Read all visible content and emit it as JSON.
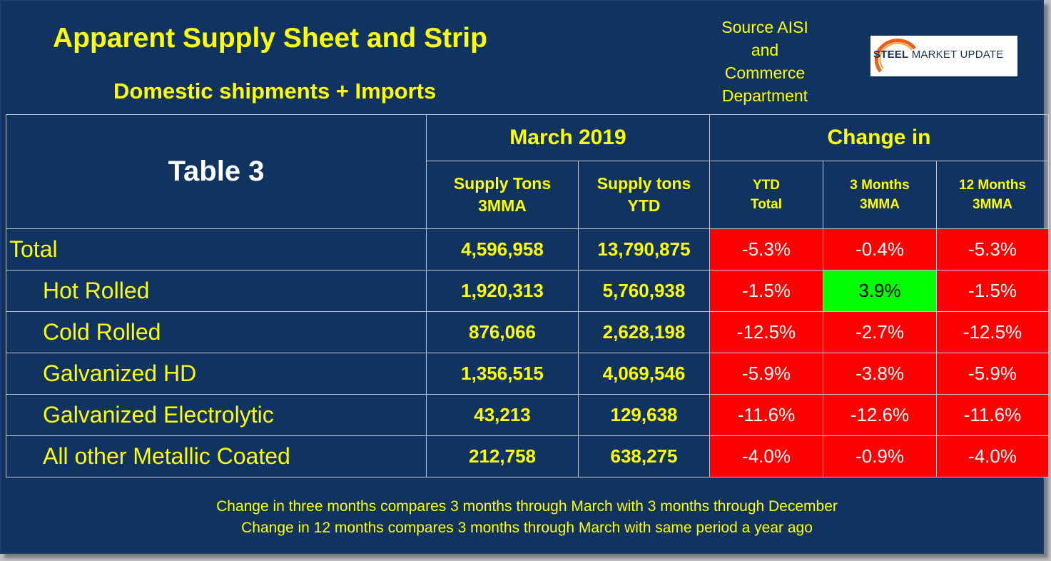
{
  "title": "Apparent Supply Sheet and Strip",
  "subtitle": "Domestic shipments + Imports",
  "source": [
    "Source AISI",
    "and",
    "Commerce",
    "Department"
  ],
  "logo": {
    "word1": "STEEL",
    "word2": "MARKET UPDATE",
    "accent_color": "#e8601c"
  },
  "table": {
    "label": "Table 3",
    "group_march": "March 2019",
    "group_change": "Change in",
    "columns": [
      [
        "Supply Tons",
        "3MMA"
      ],
      [
        "Supply tons",
        "YTD"
      ],
      [
        "YTD",
        "Total"
      ],
      [
        "3 Months",
        "3MMA"
      ],
      [
        "12 Months",
        "3MMA"
      ]
    ],
    "rows": [
      {
        "name": "Total",
        "supply_3mma": "4,596,958",
        "supply_ytd": "13,790,875",
        "ytd_total": "-5.3%",
        "m3": "-0.4%",
        "m12": "-5.3%"
      },
      {
        "name": "Hot Rolled",
        "supply_3mma": "1,920,313",
        "supply_ytd": "5,760,938",
        "ytd_total": "-1.5%",
        "m3": "3.9%",
        "m12": "-1.5%"
      },
      {
        "name": "Cold Rolled",
        "supply_3mma": "876,066",
        "supply_ytd": "2,628,198",
        "ytd_total": "-12.5%",
        "m3": "-2.7%",
        "m12": "-12.5%"
      },
      {
        "name": "Galvanized HD",
        "supply_3mma": "1,356,515",
        "supply_ytd": "4,069,546",
        "ytd_total": "-5.9%",
        "m3": "-3.8%",
        "m12": "-5.9%"
      },
      {
        "name": "Galvanized Electrolytic",
        "supply_3mma": "43,213",
        "supply_ytd": "129,638",
        "ytd_total": "-11.6%",
        "m3": "-12.6%",
        "m12": "-11.6%"
      },
      {
        "name": "All other Metallic Coated",
        "supply_3mma": "212,758",
        "supply_ytd": "638,275",
        "ytd_total": "-4.0%",
        "m3": "-0.9%",
        "m12": "-4.0%"
      }
    ]
  },
  "footnotes": [
    "Change in three months compares 3 months through March with 3 months through December",
    "Change in 12 months compares 3 months through March with same period a year ago"
  ],
  "colors": {
    "background": "#10345f",
    "text": "#ffff00",
    "negative": "#ff0000",
    "positive": "#00ff00"
  }
}
